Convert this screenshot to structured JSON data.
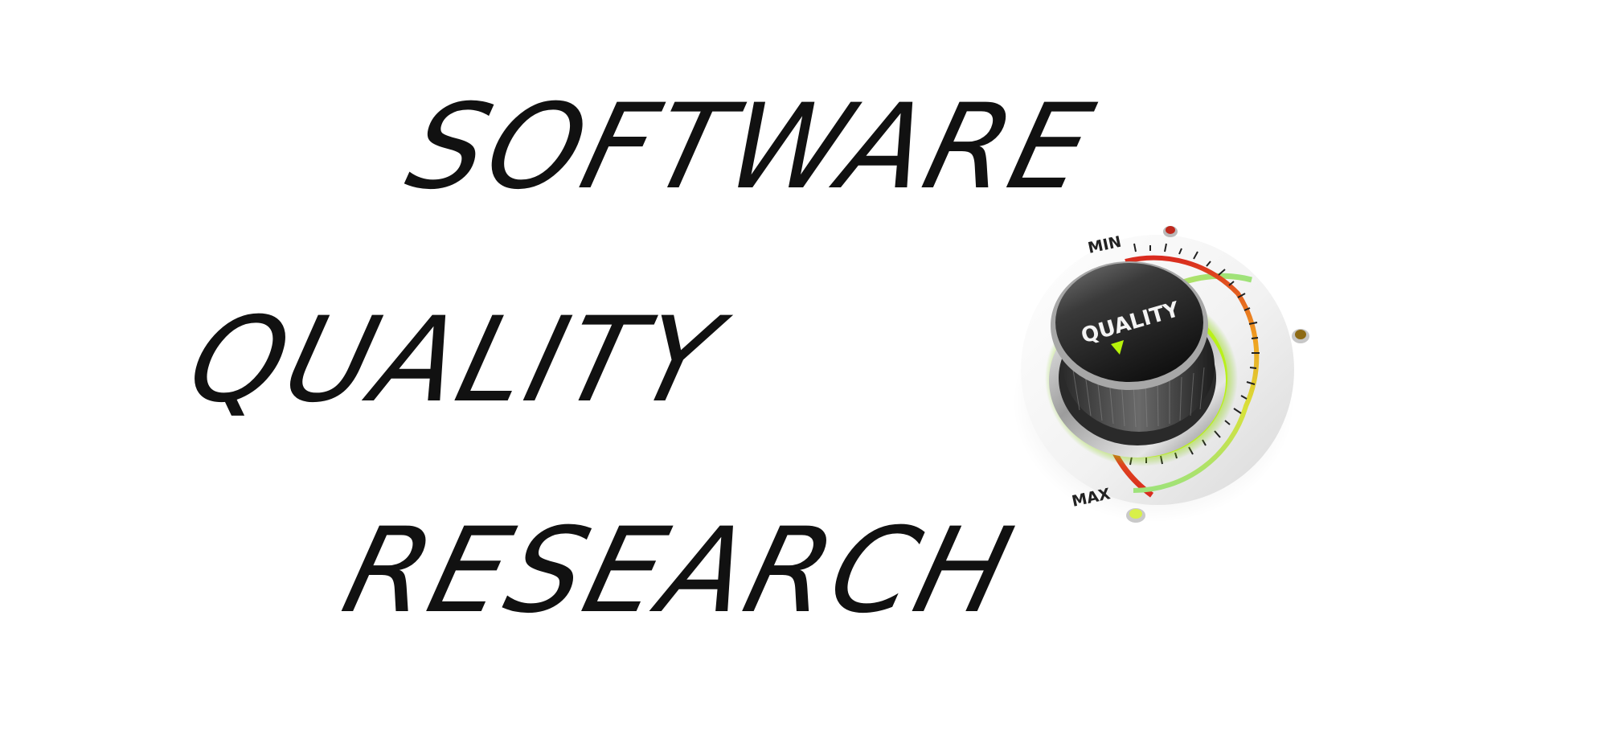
{
  "headline": {
    "line1": "SOFTWARE",
    "line2": "QUALITY",
    "line3": "RESEARCH"
  },
  "knob": {
    "label": "QUALITY",
    "scale_min": "MIN",
    "scale_max": "MAX",
    "glow_color": "#b7f20a",
    "min_led_color": "#c0281c",
    "mid_led_color": "#8d6a14",
    "max_led_color": "#d8f04a"
  }
}
